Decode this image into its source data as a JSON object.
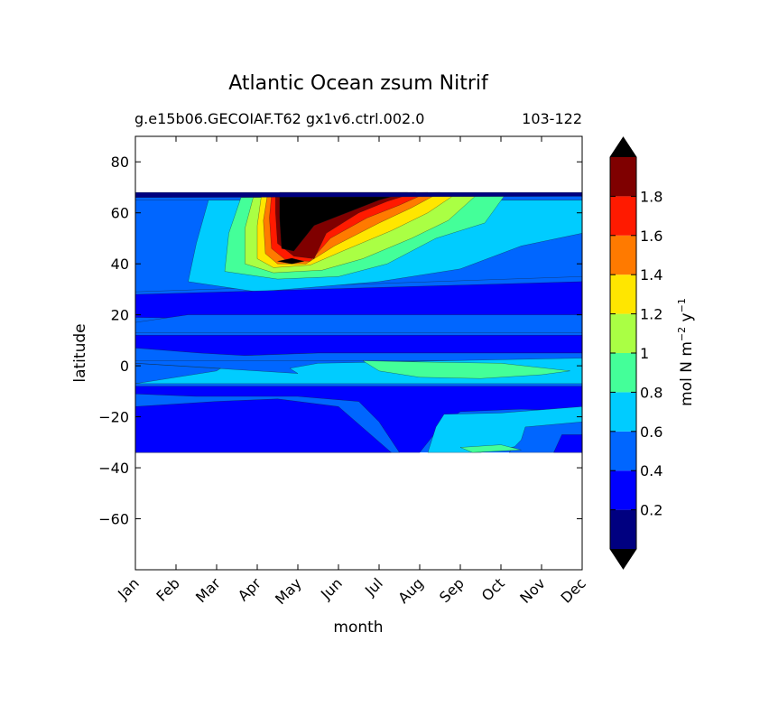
{
  "chart_data": {
    "type": "heatmap",
    "title": "Atlantic Ocean zsum Nitrif",
    "subtitle_left": "g.e15b06.GECOIAF.T62 gx1v6.ctrl.002.0",
    "subtitle_right": "103-122",
    "xlabel": "month",
    "ylabel": "latitude",
    "x_ticks": [
      "Jan",
      "Feb",
      "Mar",
      "Apr",
      "May",
      "Jun",
      "Jul",
      "Aug",
      "Sep",
      "Oct",
      "Nov",
      "Dec"
    ],
    "xlim": [
      0,
      11
    ],
    "ylim": [
      -80,
      90
    ],
    "y_ticks": [
      80,
      60,
      40,
      20,
      0,
      -20,
      -40,
      -60
    ],
    "y_tick_labels": [
      "80",
      "60",
      "40",
      "20",
      "0",
      "−20",
      "−40",
      "−60"
    ],
    "data_lat_range": [
      -34,
      68
    ],
    "colorbar": {
      "label_main": "mol N m",
      "label_exp1": "−2",
      "label_mid": " y",
      "label_exp2": "−1",
      "levels": [
        0,
        0.2,
        0.4,
        0.6,
        0.8,
        1.0,
        1.2,
        1.4,
        1.6,
        1.8,
        2.0
      ],
      "tick_values": [
        0.2,
        0.4,
        0.6,
        0.8,
        1.0,
        1.2,
        1.4,
        1.6,
        1.8
      ],
      "tick_labels": [
        "0.2",
        "0.4",
        "0.6",
        "0.8",
        "1",
        "1.2",
        "1.4",
        "1.6",
        "1.8"
      ],
      "colors": [
        "#000080",
        "#0000ff",
        "#0066ff",
        "#00ccff",
        "#44ff99",
        "#aaff44",
        "#ffe600",
        "#ff7a00",
        "#ff1a00",
        "#7f0000"
      ],
      "under_color": "#000000",
      "over_color": "#000000",
      "extend": "both"
    },
    "band_levels": [
      0.3,
      0.3,
      0.3,
      0.3,
      0.5,
      0.3,
      0.3,
      0.7,
      0.3,
      0.3,
      0.5,
      0.7,
      0.1,
      0.7
    ],
    "regions": [
      {
        "name": "north-subpolar-band",
        "level": 0.5,
        "poly": [
          [
            0,
            65
          ],
          [
            11,
            65
          ],
          [
            11,
            35
          ],
          [
            0,
            29
          ]
        ]
      },
      {
        "name": "northern-tongue-0.6",
        "level": 0.7,
        "poly": [
          [
            1.8,
            65
          ],
          [
            11,
            65
          ],
          [
            11,
            52
          ],
          [
            9.5,
            47
          ],
          [
            8,
            38
          ],
          [
            6,
            33
          ],
          [
            4.5,
            31
          ],
          [
            3,
            29
          ],
          [
            1.3,
            33
          ],
          [
            1.5,
            48
          ]
        ]
      },
      {
        "name": "northern-tongue-0.8",
        "level": 0.9,
        "poly": [
          [
            2.6,
            66
          ],
          [
            9.1,
            67
          ],
          [
            8.6,
            56
          ],
          [
            7.4,
            50
          ],
          [
            6.2,
            40
          ],
          [
            5,
            35
          ],
          [
            3.5,
            34
          ],
          [
            2.2,
            37
          ],
          [
            2.3,
            52
          ]
        ]
      },
      {
        "name": "northern-tongue-1.0",
        "level": 1.1,
        "poly": [
          [
            2.9,
            66
          ],
          [
            8.4,
            67
          ],
          [
            7.7,
            57
          ],
          [
            6.8,
            50
          ],
          [
            5.6,
            42
          ],
          [
            4.6,
            37.5
          ],
          [
            3.4,
            36.5
          ],
          [
            2.7,
            40
          ],
          [
            2.7,
            54
          ]
        ]
      },
      {
        "name": "northern-tongue-1.2",
        "level": 1.3,
        "poly": [
          [
            3.1,
            66.5
          ],
          [
            7.9,
            67.5
          ],
          [
            7.2,
            60
          ],
          [
            6.3,
            53
          ],
          [
            5.1,
            45
          ],
          [
            4.3,
            39.5
          ],
          [
            3.4,
            38.5
          ],
          [
            3.0,
            42
          ],
          [
            3.0,
            55
          ]
        ]
      },
      {
        "name": "northern-tongue-1.4",
        "level": 1.5,
        "poly": [
          [
            3.25,
            67
          ],
          [
            7.5,
            68
          ],
          [
            6.8,
            62
          ],
          [
            6.0,
            56
          ],
          [
            4.9,
            47
          ],
          [
            4.2,
            40
          ],
          [
            3.5,
            40
          ],
          [
            3.2,
            44
          ],
          [
            3.15,
            57
          ]
        ]
      },
      {
        "name": "northern-tongue-1.6",
        "level": 1.7,
        "poly": [
          [
            3.35,
            67
          ],
          [
            7.2,
            68
          ],
          [
            6.5,
            63
          ],
          [
            5.7,
            58
          ],
          [
            4.8,
            50
          ],
          [
            4.3,
            41
          ],
          [
            3.7,
            41.5
          ],
          [
            3.35,
            46
          ],
          [
            3.3,
            58
          ]
        ]
      },
      {
        "name": "northern-tongue-1.8",
        "level": 1.9,
        "poly": [
          [
            3.45,
            67.5
          ],
          [
            6.9,
            68
          ],
          [
            6.2,
            64.5
          ],
          [
            5.5,
            60
          ],
          [
            4.7,
            52
          ],
          [
            4.4,
            42
          ],
          [
            3.9,
            43
          ],
          [
            3.5,
            48
          ],
          [
            3.45,
            60
          ]
        ]
      },
      {
        "name": "northern-peak-over",
        "level": 2.5,
        "poly": [
          [
            3.55,
            68
          ],
          [
            6.7,
            68
          ],
          [
            6.0,
            65
          ],
          [
            5.2,
            60
          ],
          [
            4.4,
            55
          ],
          [
            3.9,
            45
          ],
          [
            3.6,
            46
          ],
          [
            3.55,
            58
          ]
        ]
      },
      {
        "name": "northern-peak-lobe",
        "level": 2.5,
        "poly": [
          [
            3.5,
            41
          ],
          [
            3.85,
            40
          ],
          [
            4.15,
            41
          ],
          [
            3.85,
            42.2
          ]
        ]
      },
      {
        "name": "north-edge-strip",
        "level": 0.1,
        "poly": [
          [
            0,
            68
          ],
          [
            11,
            68
          ],
          [
            11,
            66.5
          ],
          [
            0,
            66
          ]
        ]
      },
      {
        "name": "subtropical-band-north",
        "level": 0.3,
        "poly": [
          [
            0,
            28
          ],
          [
            11,
            33
          ],
          [
            11,
            20
          ],
          [
            6,
            18
          ],
          [
            4,
            18
          ],
          [
            0,
            19
          ]
        ]
      },
      {
        "name": "mid-band-tropical",
        "level": 0.5,
        "poly": [
          [
            1.3,
            20
          ],
          [
            11,
            20
          ],
          [
            11,
            13
          ],
          [
            0,
            13
          ],
          [
            0,
            17
          ]
        ]
      },
      {
        "name": "tropical-band-0.2",
        "level": 0.3,
        "poly": [
          [
            0,
            12
          ],
          [
            11,
            12
          ],
          [
            11,
            5
          ],
          [
            4.5,
            5
          ],
          [
            2.7,
            4
          ],
          [
            0,
            3
          ]
        ]
      },
      {
        "name": "tropical-band-0.4",
        "level": 0.5,
        "poly": [
          [
            0,
            7
          ],
          [
            1.6,
            5
          ],
          [
            2.7,
            4
          ],
          [
            4.5,
            5
          ],
          [
            11,
            5
          ],
          [
            11,
            2
          ],
          [
            0,
            2
          ]
        ]
      },
      {
        "name": "equatorial-0.6",
        "level": 0.7,
        "poly": [
          [
            0,
            1
          ],
          [
            2.1,
            -1
          ],
          [
            2,
            -2
          ],
          [
            0,
            -7
          ],
          [
            11,
            -7
          ],
          [
            11,
            3
          ],
          [
            4.5,
            1
          ],
          [
            3.8,
            -1
          ],
          [
            4,
            -3
          ]
        ]
      },
      {
        "name": "equatorial-0.8",
        "level": 0.9,
        "poly": [
          [
            5.6,
            2
          ],
          [
            7,
            1.5
          ],
          [
            9,
            1
          ],
          [
            10.7,
            -2
          ],
          [
            10,
            -3.5
          ],
          [
            8.5,
            -5
          ],
          [
            7,
            -4.5
          ],
          [
            6,
            -2
          ]
        ]
      },
      {
        "name": "south-subtropical-0.2",
        "level": 0.3,
        "poly": [
          [
            0,
            -8
          ],
          [
            11,
            -8
          ],
          [
            11,
            -18
          ],
          [
            9.5,
            -17
          ],
          [
            8,
            -18
          ],
          [
            7.5,
            -24
          ],
          [
            7,
            -34
          ],
          [
            0,
            -34
          ]
        ]
      },
      {
        "name": "south-subtropical-0.4",
        "level": 0.5,
        "poly": [
          [
            0,
            -11
          ],
          [
            1.5,
            -12
          ],
          [
            4,
            -12
          ],
          [
            5.5,
            -14
          ],
          [
            6,
            -22
          ],
          [
            6.5,
            -34
          ],
          [
            0,
            -34
          ]
        ]
      },
      {
        "name": "south-0.2-core",
        "level": 0.3,
        "poly": [
          [
            0,
            -16
          ],
          [
            2,
            -14
          ],
          [
            3.5,
            -13
          ],
          [
            5,
            -16
          ],
          [
            6.3,
            -34
          ],
          [
            0,
            -34
          ]
        ]
      },
      {
        "name": "south-0.6-shelf",
        "level": 0.7,
        "poly": [
          [
            7.6,
            -19
          ],
          [
            9,
            -18.5
          ],
          [
            11,
            -16
          ],
          [
            11,
            -26
          ],
          [
            10,
            -30
          ],
          [
            8.5,
            -34
          ],
          [
            7.2,
            -34
          ],
          [
            7.4,
            -24
          ]
        ]
      },
      {
        "name": "south-0.4-patch",
        "level": 0.5,
        "poly": [
          [
            9.6,
            -24
          ],
          [
            11,
            -22
          ],
          [
            11,
            -34
          ],
          [
            9.2,
            -34
          ],
          [
            9.5,
            -29
          ]
        ]
      },
      {
        "name": "south-0.2-patch",
        "level": 0.3,
        "poly": [
          [
            10.5,
            -27
          ],
          [
            11,
            -27
          ],
          [
            11,
            -34
          ],
          [
            10.3,
            -34
          ]
        ]
      },
      {
        "name": "south-0.8-sliver",
        "level": 0.9,
        "poly": [
          [
            8,
            -32
          ],
          [
            9,
            -31
          ],
          [
            9.5,
            -33
          ],
          [
            8.3,
            -34
          ]
        ]
      }
    ]
  }
}
